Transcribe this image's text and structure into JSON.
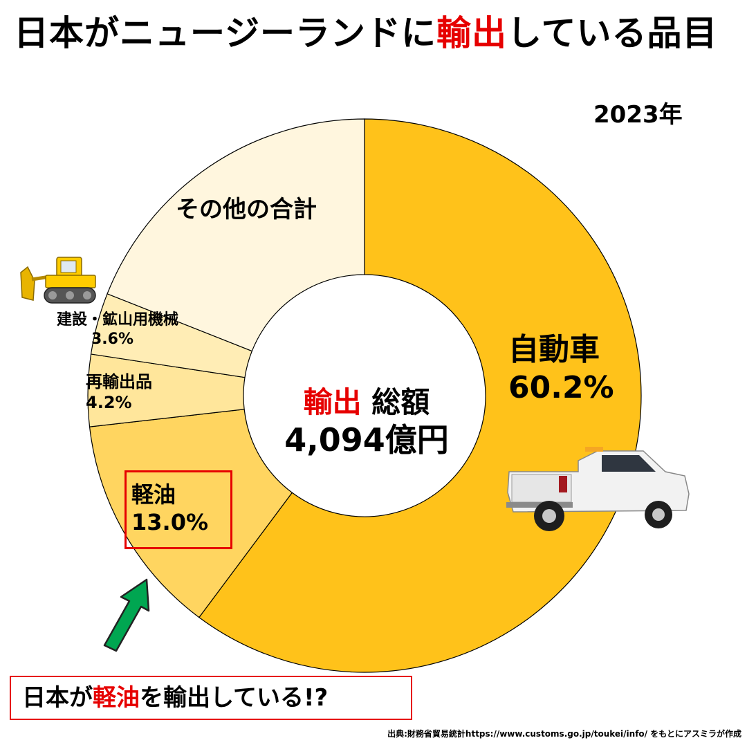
{
  "title": {
    "part1": "日本がニュージーランドに",
    "part_red": "輸出",
    "part2": "している品目"
  },
  "year": "2023年",
  "center": {
    "label_red": "輸出",
    "label_rest": " 総額",
    "total": "4,094億円"
  },
  "chart_data": {
    "type": "pie",
    "style": "donut",
    "title": "日本がニュージーランドに輸出している品目",
    "subtitle": "2023年",
    "unit": "%",
    "slices": [
      {
        "key": "auto",
        "label": "自動車",
        "value": 60.2,
        "value_label": "60.2%",
        "color": "#FFC21A"
      },
      {
        "key": "diesel",
        "label": "軽油",
        "value": 13.0,
        "value_label": "13.0%",
        "color": "#FFD560"
      },
      {
        "key": "reexp",
        "label": "再輸出品",
        "value": 4.2,
        "value_label": "4.2%",
        "color": "#FFE69B"
      },
      {
        "key": "const",
        "label": "建設・鉱山用機械",
        "value": 3.6,
        "value_label": "3.6%",
        "color": "#FFEDB5"
      },
      {
        "key": "other",
        "label": "その他の合計",
        "value": 19.0,
        "value_label": "",
        "color": "#FFF6DE"
      }
    ]
  },
  "callout": {
    "part1": "日本が",
    "part_red": "軽油",
    "part2": "を輸出している!?"
  },
  "source": "出典:財務省貿易統計https://www.customs.go.jp/toukei/info/ をもとにアスミラが作成"
}
